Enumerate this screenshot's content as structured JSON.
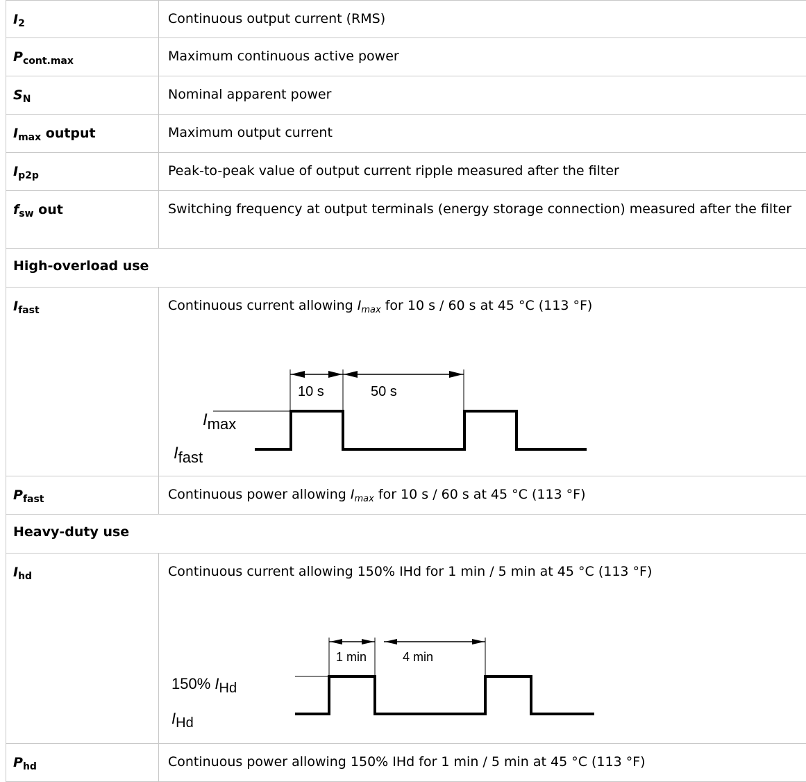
{
  "rows": [
    {
      "sym": "I",
      "sub": "2",
      "suffix": "",
      "desc": "Continuous output current (RMS)"
    },
    {
      "sym": "P",
      "sub": "cont.max",
      "suffix": "",
      "desc": "Maximum continuous active power"
    },
    {
      "sym": "S",
      "sub": "N",
      "suffix": "",
      "desc": "Nominal apparent power"
    },
    {
      "sym": "I",
      "sub": "max",
      "suffix": " output",
      "desc": "Maximum output current"
    },
    {
      "sym": "I",
      "sub": "p2p",
      "suffix": "",
      "desc": "Peak-to-peak value of output current ripple measured after the filter"
    },
    {
      "sym": "f",
      "sub": "sw",
      "suffix": " out",
      "desc": "Switching frequency at output terminals (energy storage connection) measured after the filter"
    }
  ],
  "section_high": "High-overload use",
  "ifast": {
    "sym": "I",
    "sub": "fast",
    "desc_pre": "Continuous current allowing ",
    "desc_sym": "I",
    "desc_sub": "max",
    "desc_post": " for 10 s / 60 s at 45 °C (113 °F)",
    "diagram": {
      "t1": "10 s",
      "t2": "50 s",
      "high_sym": "I",
      "high_sub": "max",
      "low_sym": "I",
      "low_sub": "fast"
    }
  },
  "pfast": {
    "sym": "P",
    "sub": "fast",
    "desc_pre": "Continuous power allowing ",
    "desc_sym": "I",
    "desc_sub": "max",
    "desc_post": " for 10 s / 60 s at 45 °C (113 °F)"
  },
  "section_heavy": "Heavy-duty use",
  "ihd": {
    "sym": "I",
    "sub": "hd",
    "desc": "Continuous current allowing 150% IHd for 1 min / 5 min at 45 °C (113 °F)",
    "diagram": {
      "t1": "1 min",
      "t2": "4 min",
      "high_pre": "150% ",
      "high_sym": "I",
      "high_sub": "Hd",
      "low_sym": "I",
      "low_sub": "Hd"
    }
  },
  "phd": {
    "sym": "P",
    "sub": "hd",
    "desc": "Continuous power allowing 150% IHd for 1 min / 5 min at 45 °C (113 °F)"
  }
}
